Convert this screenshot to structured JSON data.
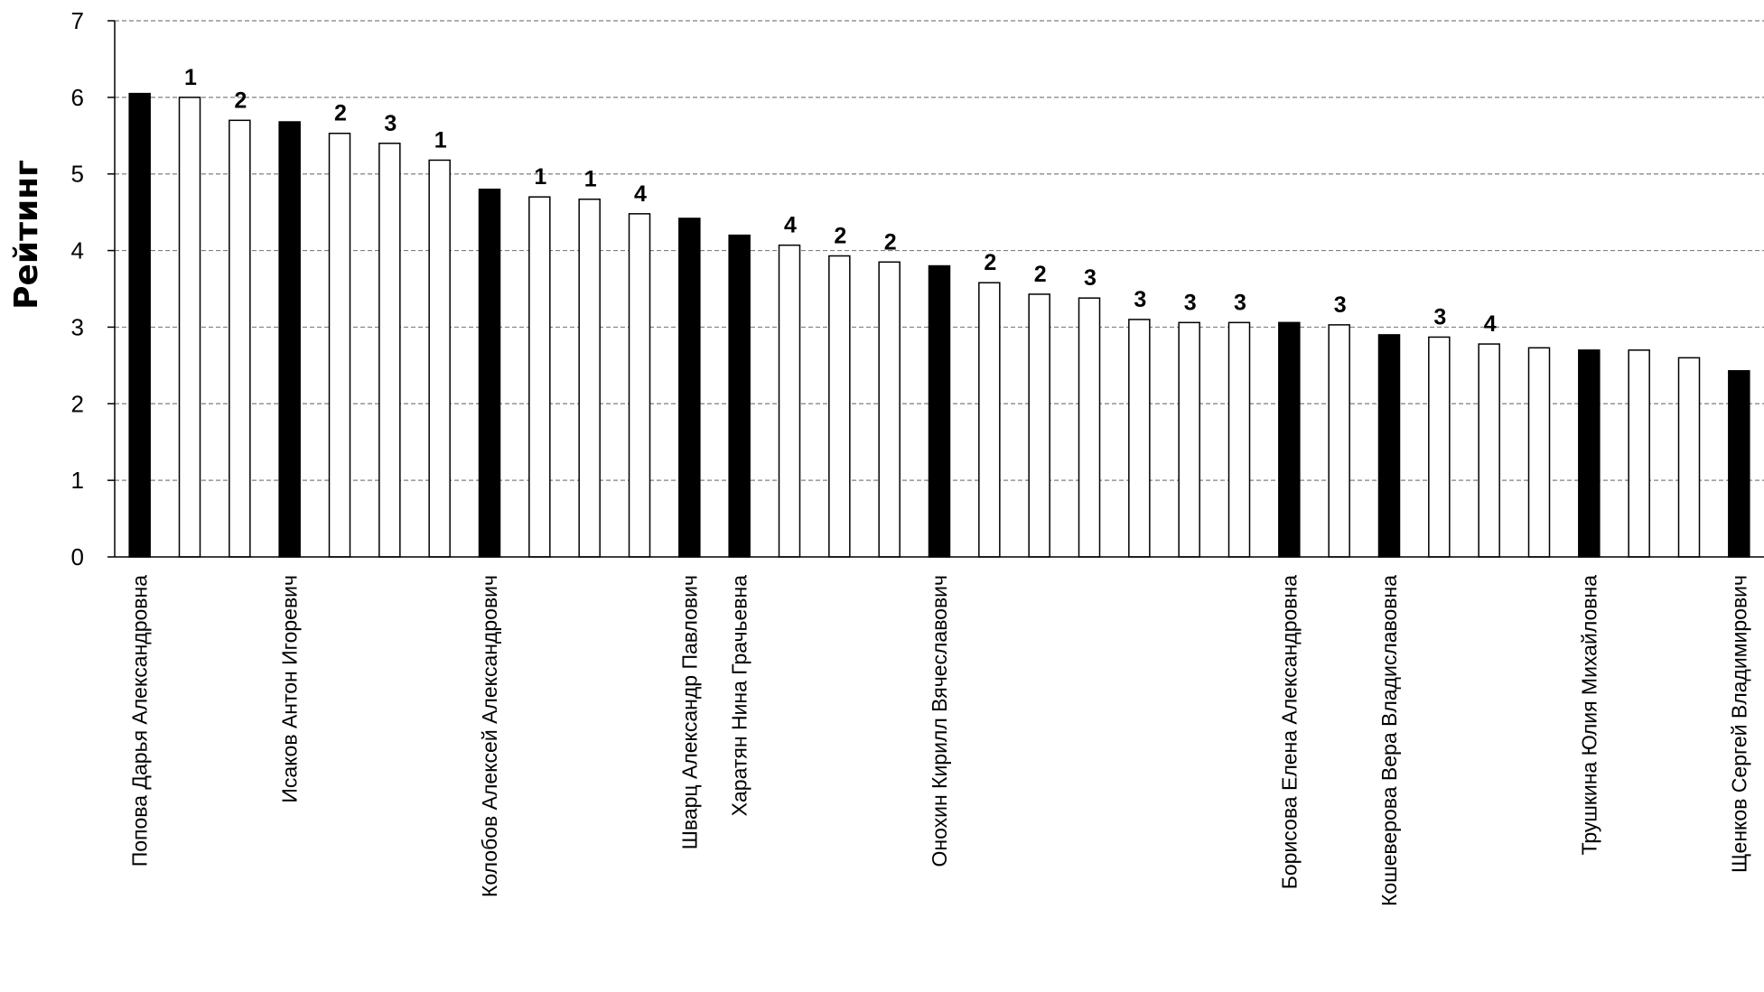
{
  "chart_data": {
    "type": "bar",
    "ylabel": "Рейтинг",
    "xlabel": "",
    "ylim": [
      0,
      7
    ],
    "yticks": [
      0,
      1,
      2,
      3,
      4,
      5,
      6,
      7
    ],
    "grid": true,
    "colors": {
      "highlight": "#000000",
      "normal": "#ffffff",
      "stroke": "#000000",
      "grid": "#808080"
    },
    "bars": [
      {
        "value": 6.05,
        "highlight": true,
        "label": "",
        "name": "Попова Дарья Александровна"
      },
      {
        "value": 6.0,
        "highlight": false,
        "label": "1",
        "name": ""
      },
      {
        "value": 5.7,
        "highlight": false,
        "label": "2",
        "name": ""
      },
      {
        "value": 5.68,
        "highlight": true,
        "label": "",
        "name": "Исаков Антон Игоревич"
      },
      {
        "value": 5.53,
        "highlight": false,
        "label": "2",
        "name": ""
      },
      {
        "value": 5.4,
        "highlight": false,
        "label": "3",
        "name": ""
      },
      {
        "value": 5.18,
        "highlight": false,
        "label": "1",
        "name": ""
      },
      {
        "value": 4.8,
        "highlight": true,
        "label": "",
        "name": "Колобов Алексей Александрович"
      },
      {
        "value": 4.7,
        "highlight": false,
        "label": "1",
        "name": ""
      },
      {
        "value": 4.67,
        "highlight": false,
        "label": "1",
        "name": ""
      },
      {
        "value": 4.48,
        "highlight": false,
        "label": "4",
        "name": ""
      },
      {
        "value": 4.42,
        "highlight": true,
        "label": "",
        "name": "Шварц Александр Павлович"
      },
      {
        "value": 4.2,
        "highlight": true,
        "label": "",
        "name": "Харатян Нина Грачьевна"
      },
      {
        "value": 4.07,
        "highlight": false,
        "label": "4",
        "name": ""
      },
      {
        "value": 3.93,
        "highlight": false,
        "label": "2",
        "name": ""
      },
      {
        "value": 3.85,
        "highlight": false,
        "label": "2",
        "name": ""
      },
      {
        "value": 3.8,
        "highlight": true,
        "label": "",
        "name": "Онохин Кирилл Вячеславович"
      },
      {
        "value": 3.58,
        "highlight": false,
        "label": "2",
        "name": ""
      },
      {
        "value": 3.43,
        "highlight": false,
        "label": "2",
        "name": ""
      },
      {
        "value": 3.38,
        "highlight": false,
        "label": "3",
        "name": ""
      },
      {
        "value": 3.1,
        "highlight": false,
        "label": "3",
        "name": ""
      },
      {
        "value": 3.06,
        "highlight": false,
        "label": "3",
        "name": ""
      },
      {
        "value": 3.06,
        "highlight": false,
        "label": "3",
        "name": ""
      },
      {
        "value": 3.06,
        "highlight": true,
        "label": "",
        "name": "Борисова Елена Александровна"
      },
      {
        "value": 3.03,
        "highlight": false,
        "label": "3",
        "name": ""
      },
      {
        "value": 2.9,
        "highlight": true,
        "label": "",
        "name": "Кошеверова Вера Владиславовна"
      },
      {
        "value": 2.87,
        "highlight": false,
        "label": "3",
        "name": ""
      },
      {
        "value": 2.78,
        "highlight": false,
        "label": "4",
        "name": ""
      },
      {
        "value": 2.73,
        "highlight": false,
        "label": "",
        "name": ""
      },
      {
        "value": 2.7,
        "highlight": true,
        "label": "",
        "name": "Трушкина Юлия Михайловна"
      },
      {
        "value": 2.7,
        "highlight": false,
        "label": "",
        "name": ""
      },
      {
        "value": 2.6,
        "highlight": false,
        "label": "",
        "name": ""
      },
      {
        "value": 2.43,
        "highlight": true,
        "label": "",
        "name": "Щенков Сергей Владимирович"
      }
    ]
  }
}
